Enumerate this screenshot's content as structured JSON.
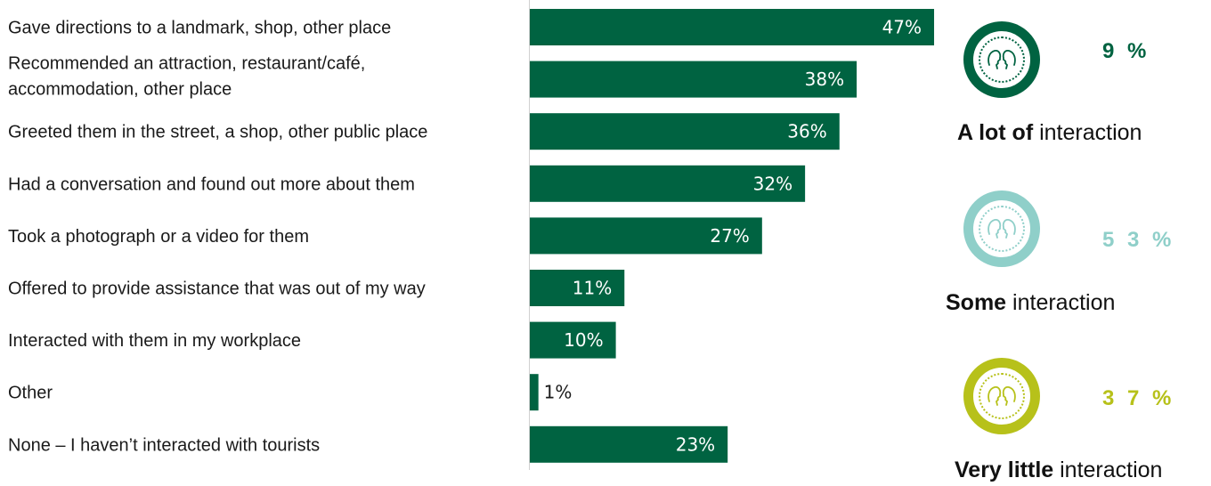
{
  "chart_data": {
    "type": "bar",
    "orientation": "horizontal",
    "categories": [
      "Gave directions to a landmark, shop, other place",
      "Recommended an attraction, restaurant/café, accommodation, other place",
      "Greeted them in the street, a shop, other public place",
      "Had a conversation and found out more about them",
      "Took a photograph or a video for them",
      "Offered to provide assistance that was out of my way",
      "Interacted with them in my workplace",
      "Other",
      "None – I haven’t interacted with tourists"
    ],
    "category_lines": [
      [
        "Gave directions to a landmark, shop, other place"
      ],
      [
        "Recommended an attraction, restaurant/café,",
        "accommodation, other place"
      ],
      [
        "Greeted them in the street, a shop, other public place"
      ],
      [
        "Had a conversation and found out more about them"
      ],
      [
        "Took a photograph or a video for them"
      ],
      [
        "Offered to provide assistance that was out of my way"
      ],
      [
        "Interacted with them in my workplace"
      ],
      [
        "Other"
      ],
      [
        "None – I haven’t interacted with tourists"
      ]
    ],
    "values": [
      47,
      38,
      36,
      32,
      27,
      11,
      10,
      1,
      23
    ],
    "value_labels": [
      "47%",
      "38%",
      "36%",
      "32%",
      "27%",
      "11%",
      "10%",
      "1%",
      "23%"
    ],
    "xlim": [
      0,
      50
    ],
    "grid": false,
    "bar_color": "#006341"
  },
  "interaction_levels": [
    {
      "percent": "9 %",
      "bold": "A lot of",
      "rest": " interaction",
      "color": "#006341",
      "icon": "faces-icon"
    },
    {
      "percent": "5 3 %",
      "bold": "Some",
      "rest": " interaction",
      "color": "#8fcfc9",
      "icon": "faces-icon"
    },
    {
      "percent": "3 7 %",
      "bold": "Very little",
      "rest": " interaction",
      "color": "#b7c11a",
      "icon": "faces-icon"
    }
  ],
  "colors": {
    "bar": "#006341",
    "bar_text": "#ffffff",
    "axis": "#d0d0d0"
  }
}
